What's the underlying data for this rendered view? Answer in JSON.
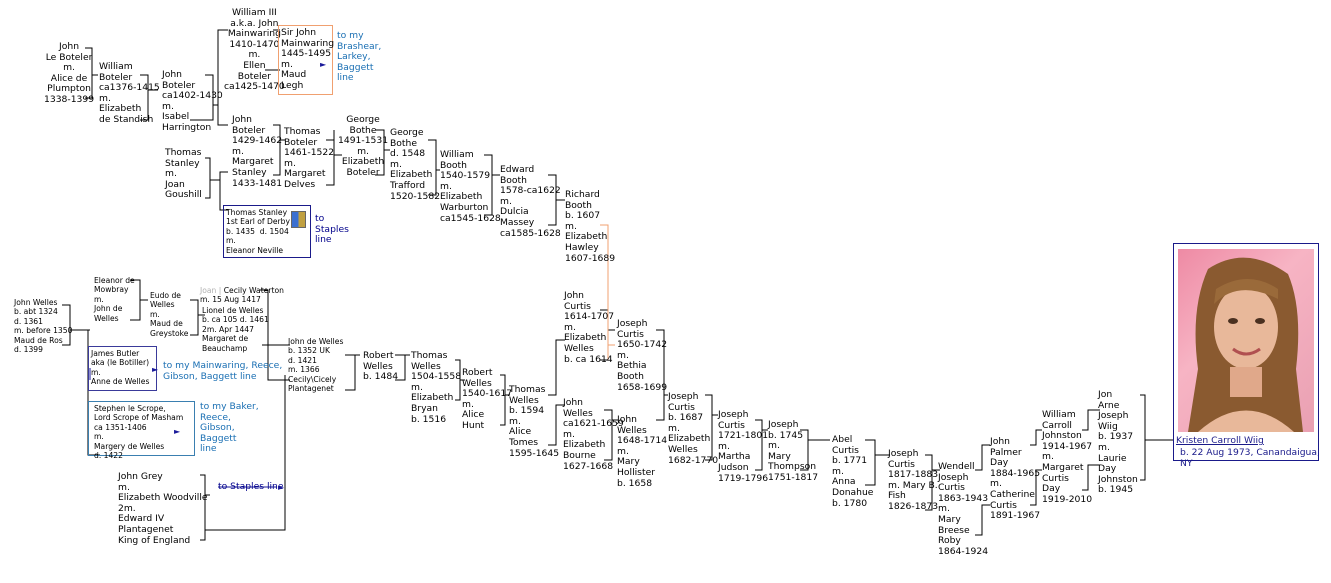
{
  "icons": {
    "arrow": "►"
  },
  "links": {
    "brashear": "to my\nBrashear,\nLarkey,\nBaggett\nline",
    "staples1": "to\nStaples\nline",
    "mainwaring": "to my Mainwaring, Reece,\nGibson, Baggett line",
    "baker": "to my Baker,\nReece,\nGibson,\nBaggett\nline",
    "staples2": "to Staples line"
  },
  "people": {
    "john_le_boteler": "John\nLe Boteler\nm.\nAlice de\nPlumpton\n1338-1399",
    "william_boteler": "William\nBoteler\nca1376-1415\nm.\nElizabeth\nde Standish",
    "john_boteler_1402": "John\nBoteler\nca1402-1430\nm.\nIsabel\nHarrington",
    "william_iii": "William III\na.k.a. John\nMainwaring\n1410-1470\nm.\nEllen\nBoteler\nca1425-1470",
    "sir_john_mainwaring": "Sir John\nMainwaring\n1445-1495\nm.\nMaud\nLegh",
    "john_boteler_1429": "John\nBoteler\n1429-1462\nm.\nMargaret\nStanley\n1433-1481",
    "thomas_boteler": "Thomas\nBoteler\n1461-1522\nm.\nMargaret\nDelves",
    "george_bothe": "George\nBothe\n1491-1531\nm.\nElizabeth\nBoteler",
    "george_bothe_1548": "George\nBothe\nd. 1548\nm.\nElizabeth\nTrafford\n1520-1582",
    "william_booth": "William\nBooth\n1540-1579\nm.\nElizabeth\nWarburton\nca1545-1628",
    "edward_booth": "Edward\nBooth\n1578-ca1622\nm.\nDulcia\nMassey\nca1585-1628",
    "richard_booth": "Richard\nBooth\nb. 1607\nm.\nElizabeth\nHawley\n1607-1689",
    "thomas_stanley": "Thomas\nStanley\nm.\nJoan\nGoushill",
    "thomas_stanley_earl": "Thomas Stanley\n1st Earl of Derby\nb. 1435  d. 1504\nm.\nEleanor Neville",
    "john_welles_1324": "John Welles\nb. abt 1324\nd. 1361\nm. before 1350\nMaud de Ros\nd. 1399",
    "eleanor_mowbray": "Eleanor de\nMowbray\nm.\nJohn de\nWelles",
    "eudo_de_welles": "Eudo de\nWelles\nm.\nMaud de\nGreystoke",
    "joan_prefix": "Joan | ",
    "cecily_waterton": "Cecily Waterton\nm. 15 Aug 1417",
    "lionel_de_welles": "Lionel de Welles\nb. ca 105 d. 1461\n2m. Apr 1447\nMargaret de\nBeauchamp",
    "john_de_welles_1352": "John de Welles\nb. 1352 UK\nd. 1421\nm. 1366\nCecily\\Cicely\nPlantagenet",
    "james_butler": "James Butler\naka (le Botiller)\nm.\nAnne de Welles",
    "stephen_le_scrope": "Stephen le Scrope,\nLord Scrope of Masham\nca 1351-1406\nm.\nMargery de Welles\nd. 1422",
    "robert_welles_1484": "Robert\nWelles\nb. 1484",
    "thomas_welles_1504": "Thomas\nWelles\n1504-1558\nm.\nElizabeth\nBryan\nb. 1516",
    "robert_welles_1540": "Robert\nWelles\n1540-1617\nm.\nAlice\nHunt",
    "thomas_welles_1594": "Thomas\nWelles\nb. 1594\nm.\nAlice\nTomes\n1595-1645",
    "john_curtis": "John\nCurtis\n1614-1707\nm.\nElizabeth\nWelles\nb. ca 1614",
    "john_welles_1621": "John\nWelles\nca1621-1659\nm.\nElizabeth\nBourne\n1627-1668",
    "joseph_curtis_1650": "Joseph\nCurtis\n1650-1742\nm.\nBethia\nBooth\n1658-1699",
    "john_welles_1648": "John\nWelles\n1648-1714\nm.\nMary\nHollister\nb. 1658",
    "joseph_curtis_1687": "Joseph\nCurtis\nb. 1687\nm.\nElizabeth\nWelles\n1682-1770",
    "joseph_curtis_1721": "Joseph\nCurtis\n1721-1801\nm.\nMartha\nJudson\n1719-1796",
    "joseph_1745": "Joseph\nb. 1745\nm.\nMary\nThompson\n1751-1817",
    "abel_curtis": "Abel\nCurtis\nb. 1771\nm.\nAnna\nDonahue\nb. 1780",
    "joseph_curtis_1817": "Joseph\nCurtis\n1817-1883\nm. Mary B.\nFish\n1826-1873",
    "wendell_curtis": "Wendell\nJoseph\nCurtis\n1863-1943\nm.\nMary\nBreese\nRoby\n1864-1924",
    "john_palmer_day": "John\nPalmer\nDay\n1884-1965\nm.\nCatherine\nCurtis\n1891-1967",
    "william_johnston": "William\nCarroll\nJohnston\n1914-1967\nm.\nMargaret\nCurtis\nDay\n1919-2010",
    "jon_wiig": "Jon\nArne\nJoseph\nWiig\nb. 1937\nm.\nLaurie\nDay\nJohnston\nb. 1945",
    "john_grey": "John Grey\nm.\nElizabeth Woodville\n2m.\nEdward IV\nPlantagenet\nKing of England"
  },
  "subject": {
    "name": "Kristen Carroll Wiig",
    "birth": "b. 22 Aug 1973, Canandaigua, NY"
  }
}
